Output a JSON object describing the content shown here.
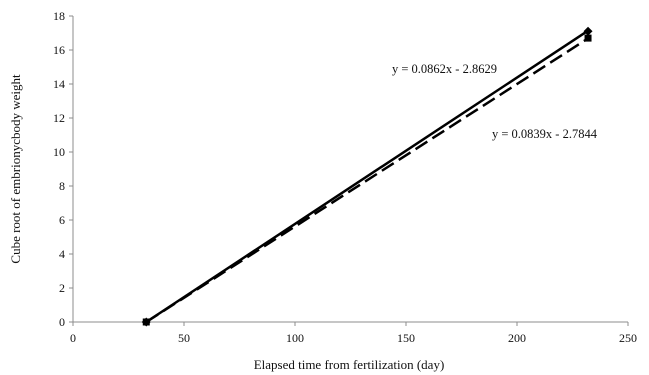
{
  "chart_data": {
    "type": "scatter",
    "title": "",
    "xlabel": "Elapsed time from fertilization (day)",
    "ylabel": "Cube root of embrionycbody weight",
    "xlim": [
      0,
      250
    ],
    "ylim": [
      0,
      18
    ],
    "x_ticks": [
      0,
      50,
      100,
      150,
      200,
      250
    ],
    "y_ticks": [
      0,
      2,
      4,
      6,
      8,
      10,
      12,
      14,
      16,
      18
    ],
    "grid": false,
    "legend": "none",
    "series": [
      {
        "marker": "diamond",
        "line_style": "solid",
        "color": "#000000",
        "points": [
          [
            33,
            0.0
          ],
          [
            232,
            17.1
          ]
        ],
        "trendline": {
          "slope": 0.0862,
          "intercept": -2.8629,
          "x_range": [
            33,
            232
          ]
        },
        "equation_label": "y = 0.0862x - 2.8629"
      },
      {
        "marker": "square",
        "line_style": "dashed",
        "color": "#000000",
        "points": [
          [
            33,
            0.0
          ],
          [
            232,
            16.7
          ]
        ],
        "trendline": {
          "slope": 0.0839,
          "intercept": -2.7844,
          "x_range": [
            33,
            232
          ]
        },
        "equation_label": "y = 0.0839x - 2.7844"
      }
    ]
  }
}
